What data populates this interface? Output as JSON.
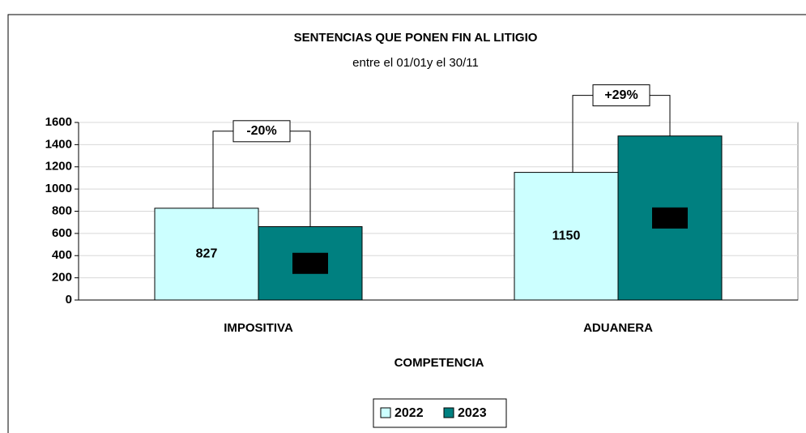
{
  "chart_data": {
    "type": "bar",
    "title": "SENTENCIAS QUE PONEN FIN AL LITIGIO",
    "subtitle": "entre el 01/01y el 30/11",
    "x_label": "COMPETENCIA",
    "categories": [
      "IMPOSITIVA",
      "ADUANERA"
    ],
    "series": [
      {
        "name": "2022",
        "color": "#ccffff",
        "values": [
          827,
          1150
        ]
      },
      {
        "name": "2023",
        "color": "#008080",
        "values": [
          661,
          1478
        ]
      }
    ],
    "annotations": [
      "-20%",
      "+29%"
    ],
    "ylim": [
      0,
      1600
    ],
    "yticks": [
      0,
      200,
      400,
      600,
      800,
      1000,
      1200,
      1400,
      1600
    ],
    "grid": true,
    "legend": "bottom"
  }
}
